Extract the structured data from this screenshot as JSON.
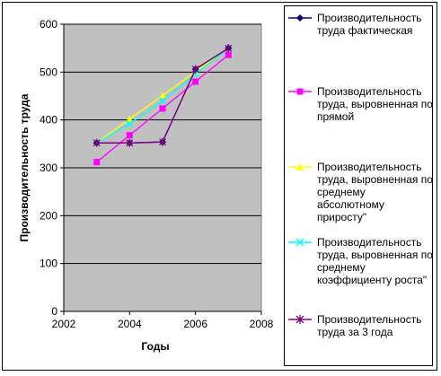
{
  "chart_data": {
    "type": "line",
    "ylabel": "Производительность труда",
    "xlabel": "Годы",
    "xlim": [
      2002,
      2008
    ],
    "ylim": [
      0,
      600
    ],
    "x_ticks": [
      "2002",
      "2004",
      "2006",
      "2008"
    ],
    "y_ticks": [
      "0",
      "100",
      "200",
      "300",
      "400",
      "500",
      "600"
    ],
    "grid": "horizontal",
    "legend_position": "right",
    "plot_background": "#c0c0c0",
    "series": [
      {
        "name": "Производительность труда фактическая",
        "color": "#000080",
        "marker": "diamond",
        "points": [
          [
            2003,
            352
          ],
          [
            2004,
            352
          ],
          [
            2005,
            354
          ],
          [
            2006,
            506
          ],
          [
            2007,
            550
          ]
        ]
      },
      {
        "name": "Производительность труда, выровненная по прямой",
        "color": "#ff00ff",
        "marker": "square",
        "points": [
          [
            2003,
            312
          ],
          [
            2004,
            368
          ],
          [
            2005,
            424
          ],
          [
            2006,
            480
          ],
          [
            2007,
            536
          ]
        ]
      },
      {
        "name": "Производительность труда, выровненная по среднему абсолютному приросту\"",
        "color": "#ffff00",
        "marker": "triangle",
        "points": [
          [
            2003,
            352
          ],
          [
            2004,
            402
          ],
          [
            2005,
            451
          ],
          [
            2006,
            501
          ],
          [
            2007,
            550
          ]
        ]
      },
      {
        "name": "Производительность труда, выровненная по среднему коэффициенту роста\"",
        "color": "#00ffff",
        "marker": "x",
        "points": [
          [
            2003,
            352
          ],
          [
            2004,
            392
          ],
          [
            2005,
            440
          ],
          [
            2006,
            496
          ],
          [
            2007,
            550
          ]
        ]
      },
      {
        "name": "Производительность труда за 3 года",
        "color": "#800080",
        "marker": "star",
        "points": [
          [
            2003,
            352
          ],
          [
            2004,
            352
          ],
          [
            2005,
            354
          ],
          [
            2006,
            506
          ],
          [
            2007,
            550
          ]
        ]
      }
    ]
  }
}
